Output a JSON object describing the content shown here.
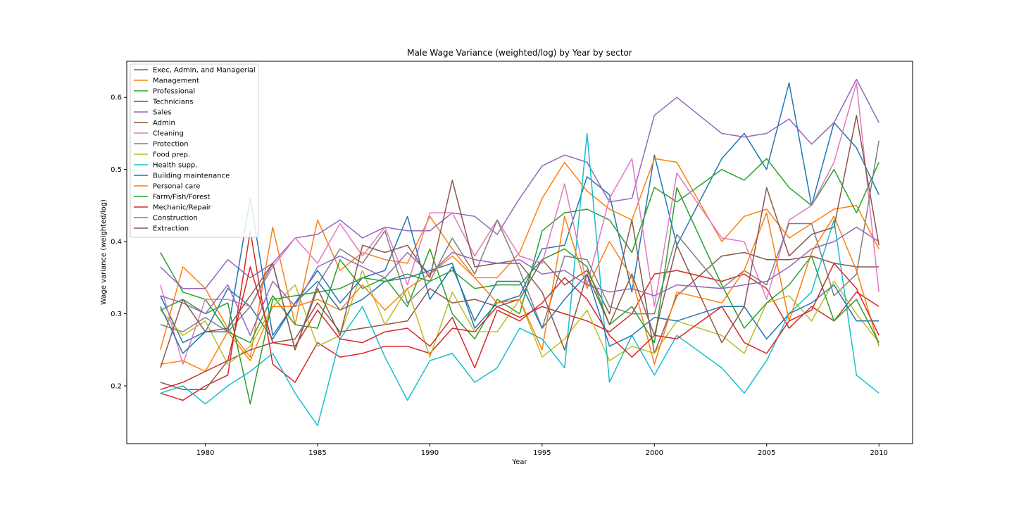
{
  "chart_data": {
    "type": "line",
    "title": "Male Wage Variance (weighted/log) by Year by sector",
    "xlabel": "Year",
    "ylabel": "Wage variance (weighted/log)",
    "xlim": [
      1976.5,
      2011.5
    ],
    "ylim": [
      0.12,
      0.65
    ],
    "xticks": [
      1980,
      1985,
      1990,
      1995,
      2000,
      2005,
      2010
    ],
    "yticks": [
      0.2,
      0.3,
      0.4,
      0.5,
      0.6
    ],
    "grid": false,
    "legend_position": "top-left",
    "x": [
      1978,
      1979,
      1980,
      1981,
      1982,
      1983,
      1984,
      1985,
      1986,
      1987,
      1988,
      1989,
      1990,
      1991,
      1992,
      1993,
      1994,
      1995,
      1996,
      1997,
      1998,
      1999,
      2000,
      2001,
      2003,
      2004,
      2005,
      2006,
      2007,
      2008,
      2009,
      2010
    ],
    "series": [
      {
        "name": "Exec, Admin, and Managerial",
        "color": "#1f77b4",
        "values": [
          0.325,
          0.26,
          0.275,
          0.335,
          0.31,
          0.265,
          0.315,
          0.345,
          0.305,
          0.32,
          0.345,
          0.35,
          0.36,
          0.37,
          0.28,
          0.315,
          0.325,
          0.39,
          0.395,
          0.49,
          0.465,
          0.33,
          0.52,
          0.395,
          0.515,
          0.55,
          0.5,
          0.62,
          0.45,
          0.565,
          0.53,
          0.465
        ]
      },
      {
        "name": "Management",
        "color": "#ff7f0e",
        "values": [
          0.25,
          0.365,
          0.335,
          0.28,
          0.24,
          0.42,
          0.285,
          0.43,
          0.36,
          0.385,
          0.375,
          0.37,
          0.435,
          0.39,
          0.35,
          0.35,
          0.385,
          0.46,
          0.51,
          0.47,
          0.445,
          0.43,
          0.515,
          0.51,
          0.4,
          0.435,
          0.445,
          0.405,
          0.425,
          0.445,
          0.45,
          0.39
        ]
      },
      {
        "name": "Professional",
        "color": "#2ca02c",
        "values": [
          0.385,
          0.33,
          0.32,
          0.275,
          0.26,
          0.325,
          0.285,
          0.28,
          0.375,
          0.335,
          0.35,
          0.31,
          0.39,
          0.3,
          0.265,
          0.32,
          0.3,
          0.415,
          0.44,
          0.445,
          0.43,
          0.385,
          0.475,
          0.455,
          0.5,
          0.485,
          0.515,
          0.475,
          0.45,
          0.5,
          0.44,
          0.51
        ]
      },
      {
        "name": "Technicians",
        "color": "#d62728",
        "values": [
          0.19,
          0.18,
          0.2,
          0.215,
          0.415,
          0.23,
          0.205,
          0.26,
          0.24,
          0.245,
          0.255,
          0.255,
          0.245,
          0.28,
          0.275,
          0.31,
          0.295,
          0.31,
          0.3,
          0.29,
          0.275,
          0.3,
          0.355,
          0.36,
          0.345,
          0.355,
          0.335,
          0.28,
          0.31,
          0.29,
          0.33,
          0.31
        ]
      },
      {
        "name": "Sales",
        "color": "#9467bd",
        "values": [
          0.365,
          0.335,
          0.335,
          0.375,
          0.35,
          0.37,
          0.405,
          0.41,
          0.43,
          0.405,
          0.42,
          0.415,
          0.415,
          0.44,
          0.435,
          0.41,
          0.46,
          0.505,
          0.52,
          0.51,
          0.455,
          0.46,
          0.575,
          0.6,
          0.55,
          0.545,
          0.55,
          0.57,
          0.535,
          0.565,
          0.625,
          0.565
        ]
      },
      {
        "name": "Admin",
        "color": "#8c564b",
        "values": [
          0.205,
          0.195,
          0.195,
          0.235,
          0.25,
          0.26,
          0.265,
          0.315,
          0.275,
          0.28,
          0.285,
          0.29,
          0.335,
          0.315,
          0.32,
          0.31,
          0.32,
          0.375,
          0.34,
          0.36,
          0.3,
          0.43,
          0.245,
          0.325,
          0.38,
          0.385,
          0.375,
          0.375,
          0.38,
          0.37,
          0.365,
          0.365
        ]
      },
      {
        "name": "Cleaning",
        "color": "#e377c2",
        "values": [
          0.34,
          0.23,
          0.32,
          0.32,
          0.31,
          0.365,
          0.405,
          0.37,
          0.425,
          0.38,
          0.42,
          0.34,
          0.44,
          0.44,
          0.38,
          0.43,
          0.38,
          0.37,
          0.48,
          0.34,
          0.46,
          0.515,
          0.31,
          0.495,
          0.405,
          0.4,
          0.32,
          0.43,
          0.45,
          0.51,
          0.62,
          0.33
        ]
      },
      {
        "name": "Protection",
        "color": "#7f7f7f",
        "values": [
          0.285,
          0.275,
          0.295,
          0.275,
          0.31,
          0.37,
          0.25,
          0.34,
          0.39,
          0.37,
          0.415,
          0.315,
          0.345,
          0.405,
          0.355,
          0.43,
          0.36,
          0.28,
          0.38,
          0.375,
          0.31,
          0.3,
          0.3,
          0.41,
          0.335,
          0.36,
          0.34,
          0.425,
          0.425,
          0.325,
          0.355,
          0.54
        ]
      },
      {
        "name": "Food prep.",
        "color": "#bcbd22",
        "values": [
          0.305,
          0.27,
          0.29,
          0.23,
          0.255,
          0.31,
          0.34,
          0.255,
          0.27,
          0.36,
          0.285,
          0.335,
          0.24,
          0.33,
          0.275,
          0.275,
          0.32,
          0.24,
          0.265,
          0.305,
          0.235,
          0.255,
          0.245,
          0.29,
          0.27,
          0.245,
          0.315,
          0.325,
          0.29,
          0.345,
          0.3,
          0.26
        ]
      },
      {
        "name": "Health supp.",
        "color": "#17becf",
        "values": [
          0.19,
          0.2,
          0.175,
          0.2,
          0.22,
          0.245,
          0.19,
          0.145,
          0.265,
          0.31,
          0.24,
          0.18,
          0.235,
          0.245,
          0.205,
          0.225,
          0.28,
          0.265,
          0.225,
          0.55,
          0.205,
          0.27,
          0.215,
          0.27,
          0.225,
          0.19,
          0.235,
          0.3,
          0.33,
          0.43,
          0.215,
          0.19
        ]
      },
      {
        "name": "Building maintenance",
        "color": "#1f77b4",
        "values": [
          0.31,
          0.245,
          0.275,
          0.275,
          0.46,
          0.27,
          0.315,
          0.36,
          0.315,
          0.35,
          0.36,
          0.435,
          0.32,
          0.365,
          0.29,
          0.345,
          0.345,
          0.28,
          0.32,
          0.355,
          0.255,
          0.27,
          0.295,
          0.29,
          0.31,
          0.31,
          0.265,
          0.3,
          0.315,
          0.34,
          0.29,
          0.29
        ]
      },
      {
        "name": "Personal care",
        "color": "#ff7f0e",
        "values": [
          0.23,
          0.235,
          0.22,
          0.275,
          0.235,
          0.31,
          0.31,
          0.32,
          0.305,
          0.34,
          0.305,
          0.335,
          0.355,
          0.38,
          0.35,
          0.315,
          0.32,
          0.25,
          0.435,
          0.335,
          0.4,
          0.35,
          0.23,
          0.33,
          0.315,
          0.36,
          0.44,
          0.29,
          0.385,
          0.435,
          0.36,
          0.255
        ]
      },
      {
        "name": "Farm/Fish/Forest",
        "color": "#2ca02c",
        "values": [
          0.305,
          0.32,
          0.3,
          0.315,
          0.175,
          0.32,
          0.325,
          0.33,
          0.335,
          0.35,
          0.345,
          0.355,
          0.345,
          0.36,
          0.335,
          0.34,
          0.34,
          0.375,
          0.39,
          0.365,
          0.285,
          0.31,
          0.26,
          0.475,
          0.34,
          0.28,
          0.315,
          0.34,
          0.38,
          0.29,
          0.32,
          0.26
        ]
      },
      {
        "name": "Mechanic/Repair",
        "color": "#d62728",
        "values": [
          0.195,
          0.205,
          0.22,
          0.235,
          0.365,
          0.26,
          0.255,
          0.305,
          0.265,
          0.26,
          0.275,
          0.28,
          0.255,
          0.295,
          0.225,
          0.305,
          0.29,
          0.315,
          0.35,
          0.32,
          0.27,
          0.24,
          0.27,
          0.265,
          0.31,
          0.26,
          0.245,
          0.29,
          0.305,
          0.37,
          0.335,
          0.27
        ]
      },
      {
        "name": "Construction",
        "color": "#9467bd",
        "values": [
          0.325,
          0.315,
          0.3,
          0.34,
          0.27,
          0.345,
          0.31,
          0.365,
          0.38,
          0.365,
          0.35,
          0.385,
          0.355,
          0.385,
          0.375,
          0.37,
          0.375,
          0.355,
          0.36,
          0.34,
          0.33,
          0.335,
          0.325,
          0.34,
          0.335,
          0.34,
          0.345,
          0.365,
          0.39,
          0.4,
          0.42,
          0.4
        ]
      },
      {
        "name": "Extraction",
        "color": "#8c564b",
        "values": [
          0.225,
          0.32,
          0.275,
          0.28,
          0.325,
          0.37,
          0.25,
          0.335,
          0.27,
          0.395,
          0.385,
          0.395,
          0.35,
          0.485,
          0.365,
          0.37,
          0.37,
          0.33,
          0.25,
          0.355,
          0.285,
          0.355,
          0.27,
          0.395,
          0.26,
          0.31,
          0.475,
          0.38,
          0.41,
          0.42,
          0.575,
          0.395
        ]
      }
    ]
  }
}
